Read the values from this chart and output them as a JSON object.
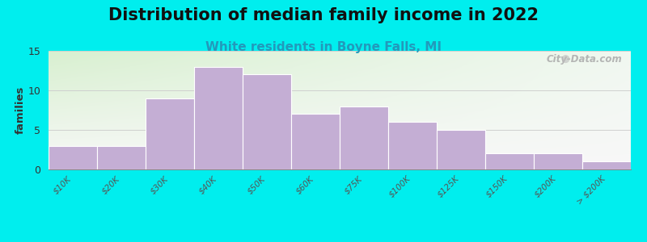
{
  "title": "Distribution of median family income in 2022",
  "subtitle": "White residents in Boyne Falls, MI",
  "ylabel": "families",
  "categories": [
    "$10K",
    "$20K",
    "$30K",
    "$40K",
    "$50K",
    "$60K",
    "$75K",
    "$100K",
    "$125K",
    "$150K",
    "$200K",
    "> $200K"
  ],
  "values": [
    3,
    3,
    9,
    13,
    12,
    7,
    8,
    6,
    5,
    2,
    2,
    1
  ],
  "bar_color": "#c4aed4",
  "bar_edge_color": "#ffffff",
  "background_color": "#00eeee",
  "plot_bg_top_left": "#d8f0d0",
  "plot_bg_top_right": "#f0f8f0",
  "plot_bg_bottom": "#f8f8f8",
  "ylim": [
    0,
    15
  ],
  "yticks": [
    0,
    5,
    10,
    15
  ],
  "title_fontsize": 15,
  "subtitle_fontsize": 11,
  "watermark_text": "City-Data.com",
  "grid_color": "#cccccc",
  "title_color": "#111111",
  "subtitle_color": "#2299bb",
  "ylabel_color": "#333333"
}
